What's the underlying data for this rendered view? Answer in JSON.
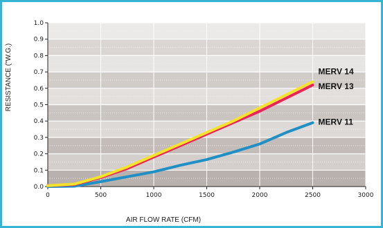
{
  "chart_data": {
    "type": "line",
    "title": "",
    "xlabel": "AIR FLOW RATE (CFM)",
    "ylabel": "RESISTANCE (\"W.G.)",
    "xlim": [
      0,
      3000
    ],
    "ylim": [
      0,
      1.0
    ],
    "x_ticks": [
      "0",
      "500",
      "1000",
      "1500",
      "2000",
      "2500",
      "3000"
    ],
    "y_ticks": [
      "0.0",
      "0.1",
      "0.2",
      "0.3",
      "0.4",
      "0.5",
      "0.6",
      "0.7",
      "0.8",
      "0.9",
      "1.0"
    ],
    "grid": true,
    "series": [
      {
        "name": "MERV 14",
        "color": "#f5e22a",
        "x": [
          0,
          250,
          500,
          750,
          1000,
          1250,
          1500,
          1750,
          2000,
          2250,
          2500
        ],
        "y": [
          0.005,
          0.015,
          0.06,
          0.12,
          0.19,
          0.26,
          0.33,
          0.4,
          0.48,
          0.56,
          0.64
        ]
      },
      {
        "name": "MERV 13",
        "color": "#e8245a",
        "x": [
          0,
          250,
          500,
          750,
          1000,
          1250,
          1500,
          1750,
          2000,
          2250,
          2500
        ],
        "y": [
          0.005,
          0.012,
          0.055,
          0.11,
          0.18,
          0.25,
          0.32,
          0.39,
          0.46,
          0.54,
          0.62
        ]
      },
      {
        "name": "MERV 11",
        "color": "#1f8fc4",
        "x": [
          0,
          250,
          500,
          750,
          1000,
          1250,
          1500,
          1750,
          2000,
          2250,
          2500
        ],
        "y": [
          0.0,
          0.002,
          0.03,
          0.06,
          0.09,
          0.13,
          0.165,
          0.21,
          0.26,
          0.33,
          0.39
        ]
      }
    ]
  }
}
